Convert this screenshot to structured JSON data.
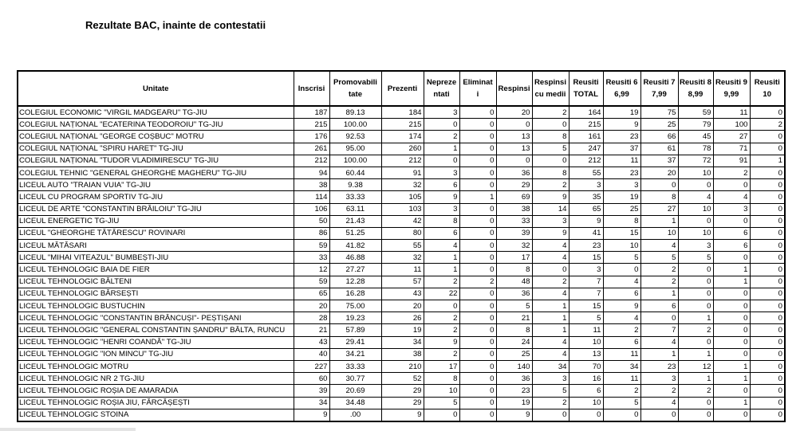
{
  "title": "Rezultate BAC, inainte de contestatii",
  "table": {
    "header": [
      [
        "Unitate"
      ],
      [
        "Inscrisi"
      ],
      [
        "Promovabili",
        "tate"
      ],
      [
        "Prezenti"
      ],
      [
        "Nepreze",
        "ntati"
      ],
      [
        "Eliminat",
        "i"
      ],
      [
        "Respinsi"
      ],
      [
        "Respinsi",
        "cu medii"
      ],
      [
        "Reusiti",
        "TOTAL"
      ],
      [
        "Reusiti 6",
        "6,99"
      ],
      [
        "Reusiti 7",
        "7,99"
      ],
      [
        "Reusiti 8",
        "8,99"
      ],
      [
        "Reusiti 9",
        "9,99"
      ],
      [
        "Reusiti",
        "10"
      ]
    ],
    "rows": [
      [
        "COLEGIUL ECONOMIC \"VIRGIL MADGEARU\" TG-JIU",
        "187",
        "89.13",
        "184",
        "3",
        "0",
        "20",
        "2",
        "164",
        "19",
        "75",
        "59",
        "11",
        "0"
      ],
      [
        "COLEGIUL NAȚIONAL \"ECATERINA TEODOROIU\" TG-JIU",
        "215",
        "100.00",
        "215",
        "0",
        "0",
        "0",
        "0",
        "215",
        "9",
        "25",
        "79",
        "100",
        "2"
      ],
      [
        "COLEGIUL NAȚIONAL \"GEORGE COȘBUC\" MOTRU",
        "176",
        "92.53",
        "174",
        "2",
        "0",
        "13",
        "8",
        "161",
        "23",
        "66",
        "45",
        "27",
        "0"
      ],
      [
        "COLEGIUL NAȚIONAL \"SPIRU HARET\" TG-JIU",
        "261",
        "95.00",
        "260",
        "1",
        "0",
        "13",
        "5",
        "247",
        "37",
        "61",
        "78",
        "71",
        "0"
      ],
      [
        "COLEGIUL NAȚIONAL \"TUDOR VLADIMIRESCU\" TG-JIU",
        "212",
        "100.00",
        "212",
        "0",
        "0",
        "0",
        "0",
        "212",
        "11",
        "37",
        "72",
        "91",
        "1"
      ],
      [
        "COLEGIUL TEHNIC \"GENERAL GHEORGHE MAGHERU\" TG-JIU",
        "94",
        "60.44",
        "91",
        "3",
        "0",
        "36",
        "8",
        "55",
        "23",
        "20",
        "10",
        "2",
        "0"
      ],
      [
        "LICEUL AUTO \"TRAIAN VUIA\" TG-JIU",
        "38",
        "9.38",
        "32",
        "6",
        "0",
        "29",
        "2",
        "3",
        "3",
        "0",
        "0",
        "0",
        "0"
      ],
      [
        "LICEUL CU PROGRAM SPORTIV TG-JIU",
        "114",
        "33.33",
        "105",
        "9",
        "1",
        "69",
        "9",
        "35",
        "19",
        "8",
        "4",
        "4",
        "0"
      ],
      [
        "LICEUL DE ARTE \"CONSTANTIN BRĂILOIU\" TG-JIU",
        "106",
        "63.11",
        "103",
        "3",
        "0",
        "38",
        "14",
        "65",
        "25",
        "27",
        "10",
        "3",
        "0"
      ],
      [
        "LICEUL ENERGETIC TG-JIU",
        "50",
        "21.43",
        "42",
        "8",
        "0",
        "33",
        "3",
        "9",
        "8",
        "1",
        "0",
        "0",
        "0"
      ],
      [
        "LICEUL \"GHEORGHE TĂTĂRESCU\" ROVINARI",
        "86",
        "51.25",
        "80",
        "6",
        "0",
        "39",
        "9",
        "41",
        "15",
        "10",
        "10",
        "6",
        "0"
      ],
      [
        "LICEUL MĂTĂSARI",
        "59",
        "41.82",
        "55",
        "4",
        "0",
        "32",
        "4",
        "23",
        "10",
        "4",
        "3",
        "6",
        "0"
      ],
      [
        "LICEUL \"MIHAI VITEAZUL\" BUMBEȘTI-JIU",
        "33",
        "46.88",
        "32",
        "1",
        "0",
        "17",
        "4",
        "15",
        "5",
        "5",
        "5",
        "0",
        "0"
      ],
      [
        "LICEUL TEHNOLOGIC BAIA DE FIER",
        "12",
        "27.27",
        "11",
        "1",
        "0",
        "8",
        "0",
        "3",
        "0",
        "2",
        "0",
        "1",
        "0"
      ],
      [
        "LICEUL TEHNOLOGIC BĂLTENI",
        "59",
        "12.28",
        "57",
        "2",
        "2",
        "48",
        "2",
        "7",
        "4",
        "2",
        "0",
        "1",
        "0"
      ],
      [
        "LICEUL TEHNOLOGIC BÂRSEȘTI",
        "65",
        "16.28",
        "43",
        "22",
        "0",
        "36",
        "4",
        "7",
        "6",
        "1",
        "0",
        "0",
        "0"
      ],
      [
        "LICEUL TEHNOLOGIC BUSTUCHIN",
        "20",
        "75.00",
        "20",
        "0",
        "0",
        "5",
        "1",
        "15",
        "9",
        "6",
        "0",
        "0",
        "0"
      ],
      [
        "LICEUL TEHNOLOGIC \"CONSTANTIN BRÂNCUȘI\"- PEȘTIȘANI",
        "28",
        "19.23",
        "26",
        "2",
        "0",
        "21",
        "1",
        "5",
        "4",
        "0",
        "1",
        "0",
        "0"
      ],
      [
        "LICEUL TEHNOLOGIC \"GENERAL CONSTANTIN ȘANDRU\" BÂLTA, RUNCU",
        "21",
        "57.89",
        "19",
        "2",
        "0",
        "8",
        "1",
        "11",
        "2",
        "7",
        "2",
        "0",
        "0"
      ],
      [
        "LICEUL TEHNOLOGIC \"HENRI COANDĂ\" TG-JIU",
        "43",
        "29.41",
        "34",
        "9",
        "0",
        "24",
        "4",
        "10",
        "6",
        "4",
        "0",
        "0",
        "0"
      ],
      [
        "LICEUL TEHNOLOGIC \"ION MINCU\" TG-JIU",
        "40",
        "34.21",
        "38",
        "2",
        "0",
        "25",
        "4",
        "13",
        "11",
        "1",
        "1",
        "0",
        "0"
      ],
      [
        "LICEUL TEHNOLOGIC MOTRU",
        "227",
        "33.33",
        "210",
        "17",
        "0",
        "140",
        "34",
        "70",
        "34",
        "23",
        "12",
        "1",
        "0"
      ],
      [
        "LICEUL TEHNOLOGIC NR 2 TG-JIU",
        "60",
        "30.77",
        "52",
        "8",
        "0",
        "36",
        "3",
        "16",
        "11",
        "3",
        "1",
        "1",
        "0"
      ],
      [
        "LICEUL TEHNOLOGIC ROȘIA DE AMARADIA",
        "39",
        "20.69",
        "29",
        "10",
        "0",
        "23",
        "5",
        "6",
        "2",
        "2",
        "2",
        "0",
        "0"
      ],
      [
        "LICEUL TEHNOLOGIC ROȘIA JIU, FĂRCĂȘEȘTI",
        "34",
        "34.48",
        "29",
        "5",
        "0",
        "19",
        "2",
        "10",
        "5",
        "4",
        "0",
        "1",
        "0"
      ],
      [
        "LICEUL TEHNOLOGIC STOINA",
        "9",
        ".00",
        "9",
        "0",
        "0",
        "9",
        "0",
        "0",
        "0",
        "0",
        "0",
        "0",
        "0"
      ]
    ]
  }
}
